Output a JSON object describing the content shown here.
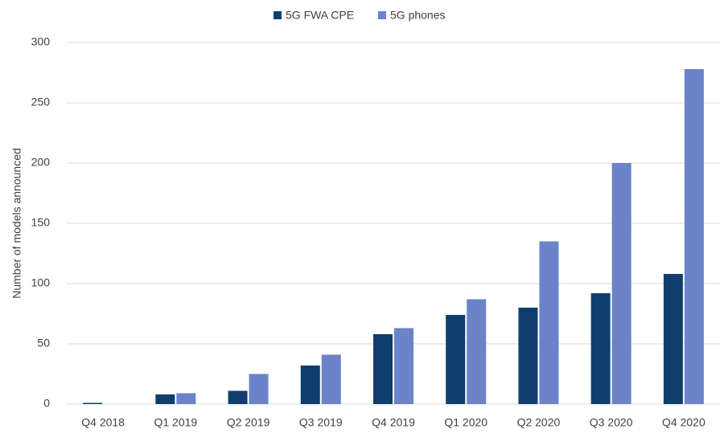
{
  "chart_data": {
    "type": "bar",
    "y_label": "Number of models announced",
    "categories": [
      "Q4 2018",
      "Q1 2019",
      "Q2 2019",
      "Q3 2019",
      "Q4 2019",
      "Q1 2020",
      "Q2 2020",
      "Q3 2020",
      "Q4 2020"
    ],
    "series": [
      {
        "name": "5G FWA CPE",
        "color": "#0f3e6e",
        "values": [
          1,
          8,
          11,
          32,
          58,
          74,
          80,
          92,
          108
        ]
      },
      {
        "name": "5G phones",
        "color": "#6b83c8",
        "values": [
          0,
          9,
          25,
          41,
          63,
          87,
          135,
          200,
          278
        ]
      }
    ],
    "ylim": [
      0,
      300
    ],
    "yticks": [
      0,
      50,
      100,
      150,
      200,
      250,
      300
    ],
    "grid": true,
    "legend": "top"
  }
}
